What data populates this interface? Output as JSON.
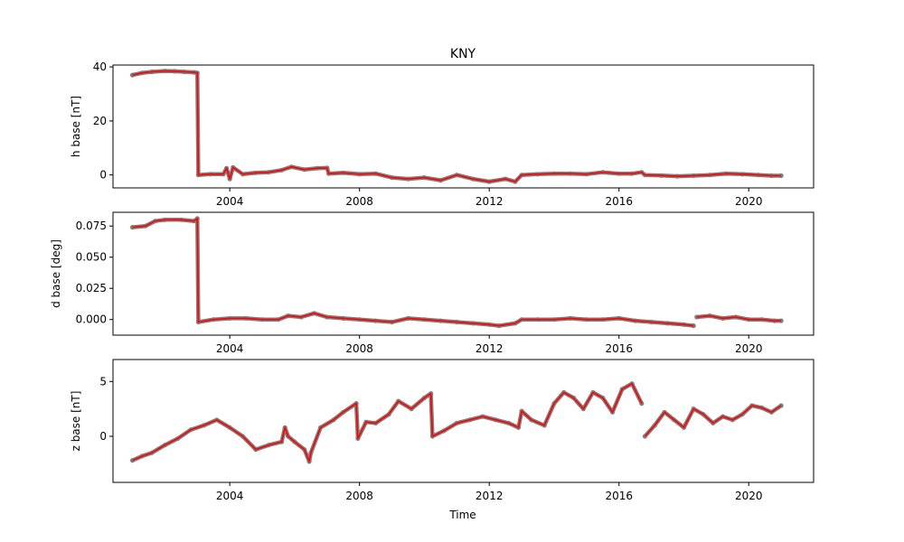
{
  "chart_data": {
    "type": "line",
    "title": "KNY",
    "xlabel": "Time",
    "x_tick_labels": [
      "2004",
      "2008",
      "2012",
      "2016",
      "2020"
    ],
    "x_ticks": [
      2004,
      2008,
      2012,
      2016,
      2020
    ],
    "xlim": [
      2000.4,
      2022.0
    ],
    "colors": {
      "line": "#ff0000",
      "points": "#7f7f7f"
    },
    "grid": false,
    "panels": [
      {
        "ylabel": "h base [nT]",
        "ylim": [
          -4.8,
          40.7
        ],
        "y_ticks": [
          0,
          20,
          40
        ],
        "y_tick_labels": [
          "0",
          "20",
          "40"
        ],
        "series": [
          {
            "x": [
              2001.0,
              2001.3,
              2001.6,
              2002.0,
              2002.3,
              2002.6,
              2002.9,
              2003.0,
              2003.03,
              2003.4,
              2003.8,
              2003.9,
              2004.0,
              2004.1,
              2004.4,
              2004.8,
              2005.2,
              2005.6,
              2005.9,
              2006.3,
              2006.7,
              2007.0,
              2007.05,
              2007.5,
              2008.0,
              2008.5,
              2009.0,
              2009.5,
              2010.0,
              2010.5,
              2011.0,
              2011.5,
              2012.0,
              2012.5,
              2012.8,
              2013.0,
              2013.5,
              2014.0,
              2014.5,
              2015.0,
              2015.5,
              2016.0,
              2016.4,
              2016.7,
              2016.8,
              2017.3,
              2017.8,
              2018.3,
              2018.8,
              2019.3,
              2019.8,
              2020.3,
              2020.7,
              2021.0
            ],
            "y": [
              37.0,
              37.8,
              38.2,
              38.5,
              38.4,
              38.2,
              38.0,
              37.8,
              0.0,
              0.3,
              0.3,
              2.5,
              -1.5,
              2.8,
              0.3,
              0.8,
              1.0,
              1.8,
              3.0,
              2.0,
              2.5,
              2.6,
              0.5,
              0.8,
              0.3,
              0.5,
              -1.0,
              -1.5,
              -1.0,
              -2.0,
              0.0,
              -1.5,
              -2.5,
              -1.5,
              -2.5,
              0.0,
              0.3,
              0.5,
              0.5,
              0.3,
              1.0,
              0.5,
              0.5,
              1.0,
              0.0,
              -0.2,
              -0.5,
              -0.3,
              0.0,
              0.5,
              0.3,
              0.0,
              -0.3,
              -0.3
            ]
          }
        ]
      },
      {
        "ylabel": "d base [deg]",
        "ylim": [
          -0.0125,
          0.086
        ],
        "y_ticks": [
          0.0,
          0.025,
          0.05,
          0.075
        ],
        "y_tick_labels": [
          "0.000",
          "0.025",
          "0.050",
          "0.075"
        ],
        "series": [
          {
            "x": [
              2001.0,
              2001.4,
              2001.7,
              2002.0,
              2002.5,
              2002.9,
              2003.0,
              2003.03,
              2003.5,
              2004.0,
              2004.5,
              2005.0,
              2005.5,
              2005.8,
              2006.2,
              2006.6,
              2007.0,
              2007.5,
              2008.0,
              2008.5,
              2009.0,
              2009.5,
              2010.0,
              2010.5,
              2011.0,
              2011.5,
              2012.0,
              2012.3,
              2012.8,
              2013.0,
              2013.5,
              2014.0,
              2014.5,
              2015.0,
              2015.5,
              2016.0,
              2016.5,
              2017.0,
              2017.5,
              2018.0,
              2018.3
            ],
            "y": [
              0.074,
              0.075,
              0.079,
              0.08,
              0.08,
              0.079,
              0.081,
              -0.002,
              0.0,
              0.001,
              0.001,
              0.0,
              0.0,
              0.003,
              0.002,
              0.005,
              0.002,
              0.001,
              0.0,
              -0.001,
              -0.002,
              0.001,
              0.0,
              -0.001,
              -0.002,
              -0.003,
              -0.004,
              -0.005,
              -0.003,
              0.0,
              0.0,
              0.0,
              0.001,
              0.0,
              0.0,
              0.001,
              -0.001,
              -0.002,
              -0.003,
              -0.004,
              -0.005
            ]
          },
          {
            "x": [
              2018.4,
              2018.8,
              2019.2,
              2019.6,
              2020.0,
              2020.4,
              2020.8,
              2021.0
            ],
            "y": [
              0.002,
              0.003,
              0.001,
              0.002,
              0.0,
              0.0,
              -0.001,
              -0.001
            ]
          }
        ]
      },
      {
        "ylabel": "z base [nT]",
        "ylim": [
          -4.2,
          7.0
        ],
        "y_ticks": [
          0,
          5
        ],
        "y_tick_labels": [
          "0",
          "5"
        ],
        "series": [
          {
            "x": [
              2001.0,
              2001.3,
              2001.6,
              2002.0,
              2002.4,
              2002.8,
              2003.2,
              2003.6,
              2004.0,
              2004.4,
              2004.8,
              2005.2,
              2005.6,
              2005.7,
              2005.8,
              2006.0,
              2006.3,
              2006.45,
              2006.5,
              2006.8,
              2007.2,
              2007.5,
              2007.9,
              2007.95,
              2008.2,
              2008.5,
              2008.9,
              2009.2,
              2009.6,
              2010.0,
              2010.2,
              2010.25,
              2010.6,
              2011.0,
              2011.4,
              2011.8,
              2012.2,
              2012.6,
              2012.9,
              2013.0,
              2013.3,
              2013.7,
              2014.0,
              2014.3,
              2014.6,
              2014.9,
              2015.2,
              2015.5,
              2015.8,
              2016.1,
              2016.4,
              2016.7
            ],
            "y": [
              -2.2,
              -1.8,
              -1.5,
              -0.8,
              -0.2,
              0.6,
              1.0,
              1.5,
              0.8,
              0.0,
              -1.2,
              -0.8,
              -0.5,
              0.8,
              0.0,
              -0.5,
              -1.2,
              -2.3,
              -1.5,
              0.8,
              1.5,
              2.2,
              3.0,
              -0.2,
              1.3,
              1.2,
              2.0,
              3.2,
              2.5,
              3.5,
              3.9,
              0.0,
              0.5,
              1.2,
              1.5,
              1.8,
              1.5,
              1.2,
              0.8,
              2.3,
              1.5,
              1.0,
              3.0,
              4.0,
              3.5,
              2.5,
              4.0,
              3.5,
              2.2,
              4.3,
              4.8,
              3.0
            ]
          },
          {
            "x": [
              2016.8,
              2017.1,
              2017.4,
              2017.7,
              2018.0,
              2018.3,
              2018.6,
              2018.9,
              2019.2,
              2019.5,
              2019.8,
              2020.1,
              2020.4,
              2020.7,
              2021.0
            ],
            "y": [
              0.0,
              1.0,
              2.2,
              1.5,
              0.8,
              2.5,
              2.0,
              1.2,
              1.8,
              1.5,
              2.0,
              2.8,
              2.6,
              2.2,
              2.8
            ]
          }
        ]
      }
    ]
  }
}
